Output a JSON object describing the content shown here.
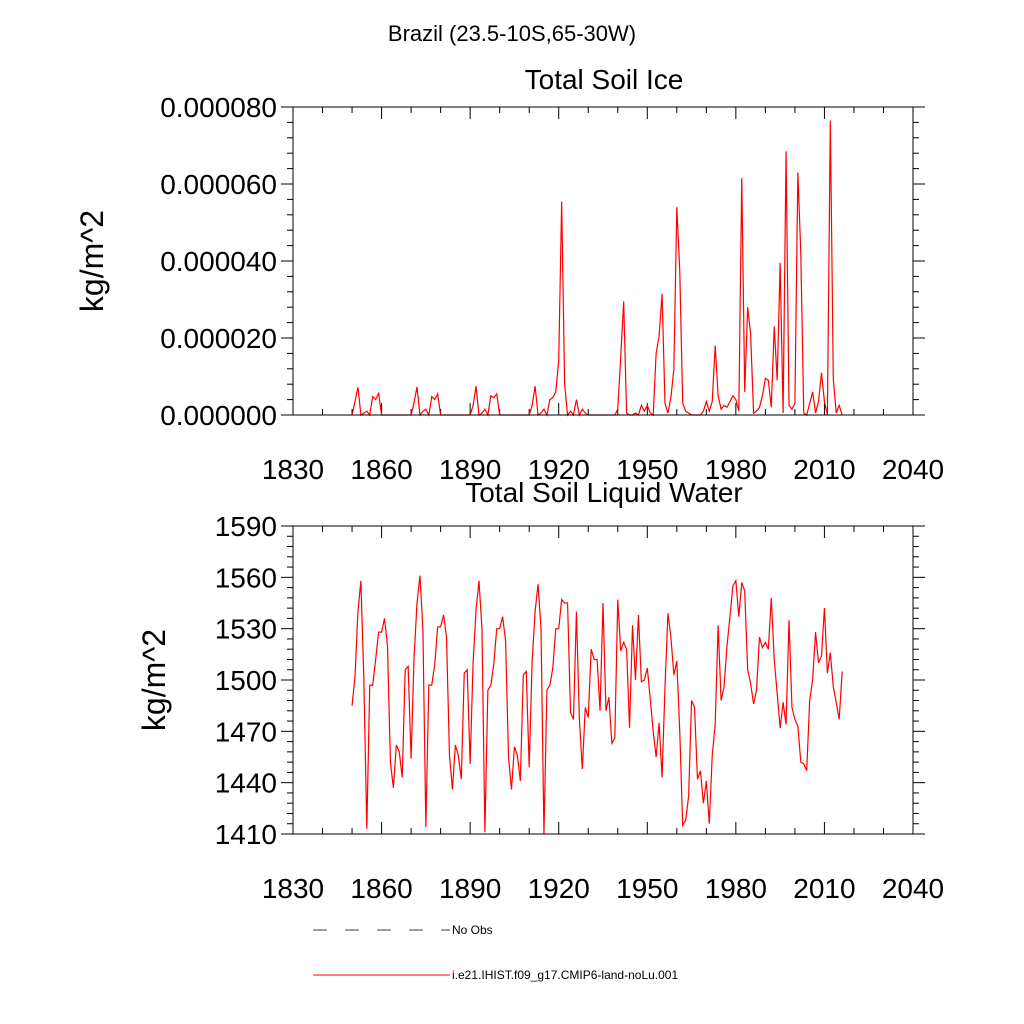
{
  "figure_title": "Brazil (23.5-10S,65-30W)",
  "colors": {
    "series": "#ff0000",
    "obs": "#3a3a5a",
    "axis": "#000000"
  },
  "legend": {
    "items": [
      {
        "label": "No Obs",
        "style": "dashed",
        "color": "#3a3a5a"
      },
      {
        "label": "i.e21.IHIST.f09_g17.CMIP6-land-noLu.001",
        "style": "solid",
        "color": "#ff0000"
      }
    ]
  },
  "chart_data": [
    {
      "type": "line",
      "title": "Total Soil Ice",
      "xlabel": "",
      "ylabel": "kg/m^2",
      "xlim": [
        1830,
        2040
      ],
      "ylim": [
        0,
        8e-05
      ],
      "xticks": [
        1830,
        1860,
        1890,
        1920,
        1950,
        1980,
        2010,
        2040
      ],
      "yticks": [
        0,
        2e-05,
        4e-05,
        6e-05,
        8e-05
      ],
      "ytick_labels": [
        "0.000000",
        "0.000020",
        "0.000040",
        "0.000060",
        "0.000080"
      ],
      "grid": false,
      "series": [
        {
          "name": "i.e21.IHIST.f09_g17.CMIP6-land-noLu.001",
          "x_start": 1850,
          "x_step": 1,
          "values": [
            0,
            3.5e-06,
            7.2e-06,
            0,
            5e-07,
            1e-06,
            0,
            4.8e-06,
            4e-06,
            5.6e-06,
            0,
            0,
            0,
            0,
            0,
            0,
            0,
            0,
            0,
            0,
            0,
            3.2e-06,
            7.3e-06,
            0,
            1e-06,
            1.5e-06,
            0,
            4.8e-06,
            4e-06,
            5.5e-06,
            0,
            0,
            0,
            0,
            0,
            0,
            0,
            0,
            0,
            0,
            0,
            2.5e-06,
            7.5e-06,
            0,
            5e-07,
            1.5e-06,
            0,
            5e-06,
            4.5e-06,
            5.5e-06,
            0,
            0,
            0,
            0,
            0,
            0,
            0,
            0,
            0,
            0,
            0,
            2.5e-06,
            7.5e-06,
            0,
            5e-07,
            1.5e-06,
            0,
            4e-06,
            4.5e-06,
            6e-06,
            1.4e-05,
            5.55e-05,
            8e-06,
            0,
            1e-06,
            0,
            4e-06,
            0,
            1.5e-06,
            5e-07,
            0,
            0,
            0,
            0,
            0,
            0,
            0,
            0,
            0,
            0,
            1.5e-06,
            1.5e-05,
            2.95e-05,
            5e-07,
            0,
            0,
            5e-07,
            0,
            2.5e-06,
            1e-06,
            2.5e-06,
            5e-07,
            0,
            1.6e-05,
            2.05e-05,
            3.15e-05,
            3e-06,
            5e-07,
            4.5e-06,
            1.2e-05,
            5.4e-05,
            3.75e-05,
            3e-06,
            1e-06,
            5e-07,
            0,
            0,
            0,
            0,
            1e-06,
            3.5e-06,
            1e-06,
            3.5e-06,
            1.8e-05,
            5e-06,
            1.5e-06,
            2.5e-06,
            2e-06,
            3.5e-06,
            5e-06,
            4e-06,
            1e-06,
            6.15e-05,
            6e-06,
            2.8e-05,
            2.1e-05,
            5e-07,
            1e-06,
            2e-06,
            5e-06,
            9.5e-06,
            9e-06,
            2e-06,
            2.3e-05,
            9e-06,
            3.95e-05,
            5e-07,
            6.85e-05,
            2.5e-06,
            1.5e-06,
            3e-06,
            6.3e-05,
            4.2e-05,
            5e-07,
            0,
            3e-06,
            6e-06,
            5e-07,
            3.5e-06,
            1.1e-05,
            3.5e-06,
            0,
            7.65e-05,
            9.5e-06,
            5e-07,
            2.5e-06,
            0
          ]
        }
      ]
    },
    {
      "type": "line",
      "title": "Total Soil Liquid Water",
      "xlabel": "",
      "ylabel": "kg/m^2",
      "xlim": [
        1830,
        2040
      ],
      "ylim": [
        1410,
        1590
      ],
      "xticks": [
        1830,
        1860,
        1890,
        1920,
        1950,
        1980,
        2010,
        2040
      ],
      "yticks": [
        1410,
        1440,
        1470,
        1500,
        1530,
        1560,
        1590
      ],
      "ytick_labels": [
        "1410",
        "1440",
        "1470",
        "1500",
        "1530",
        "1560",
        "1590"
      ],
      "grid": false,
      "series": [
        {
          "name": "i.e21.IHIST.f09_g17.CMIP6-land-noLu.001",
          "x_start": 1850,
          "x_step": 1,
          "values": [
            1485,
            1502,
            1540,
            1558,
            1500,
            1413,
            1497,
            1497,
            1512,
            1528,
            1528,
            1536,
            1520,
            1452,
            1437,
            1462,
            1458,
            1443,
            1506,
            1508,
            1454,
            1513,
            1545,
            1561,
            1530,
            1414,
            1497,
            1497,
            1509,
            1531,
            1531,
            1538,
            1525,
            1456,
            1436,
            1462,
            1456,
            1442,
            1504,
            1506,
            1451,
            1510,
            1541,
            1558,
            1530,
            1411,
            1494,
            1497,
            1509,
            1530,
            1530,
            1537,
            1523,
            1455,
            1436,
            1461,
            1456,
            1441,
            1503,
            1505,
            1449,
            1511,
            1540,
            1556,
            1530,
            1410,
            1494,
            1497,
            1507,
            1530,
            1530,
            1547,
            1545,
            1545,
            1481,
            1477,
            1540,
            1477,
            1448,
            1484,
            1478,
            1518,
            1512,
            1512,
            1482,
            1545,
            1482,
            1490,
            1463,
            1466,
            1547,
            1517,
            1522,
            1518,
            1472,
            1532,
            1500,
            1538,
            1499,
            1500,
            1507,
            1489,
            1470,
            1455,
            1475,
            1443,
            1496,
            1539,
            1525,
            1503,
            1511,
            1470,
            1415,
            1418,
            1432,
            1488,
            1484,
            1442,
            1447,
            1428,
            1441,
            1416,
            1456,
            1474,
            1532,
            1488,
            1496,
            1520,
            1537,
            1555,
            1558,
            1537,
            1557,
            1552,
            1506,
            1498,
            1486,
            1494,
            1525,
            1519,
            1522,
            1518,
            1548,
            1512,
            1492,
            1472,
            1487,
            1474,
            1535,
            1484,
            1477,
            1473,
            1452,
            1451,
            1447,
            1488,
            1500,
            1528,
            1510,
            1514,
            1542,
            1504,
            1516,
            1496,
            1487,
            1477,
            1505
          ]
        }
      ]
    }
  ]
}
